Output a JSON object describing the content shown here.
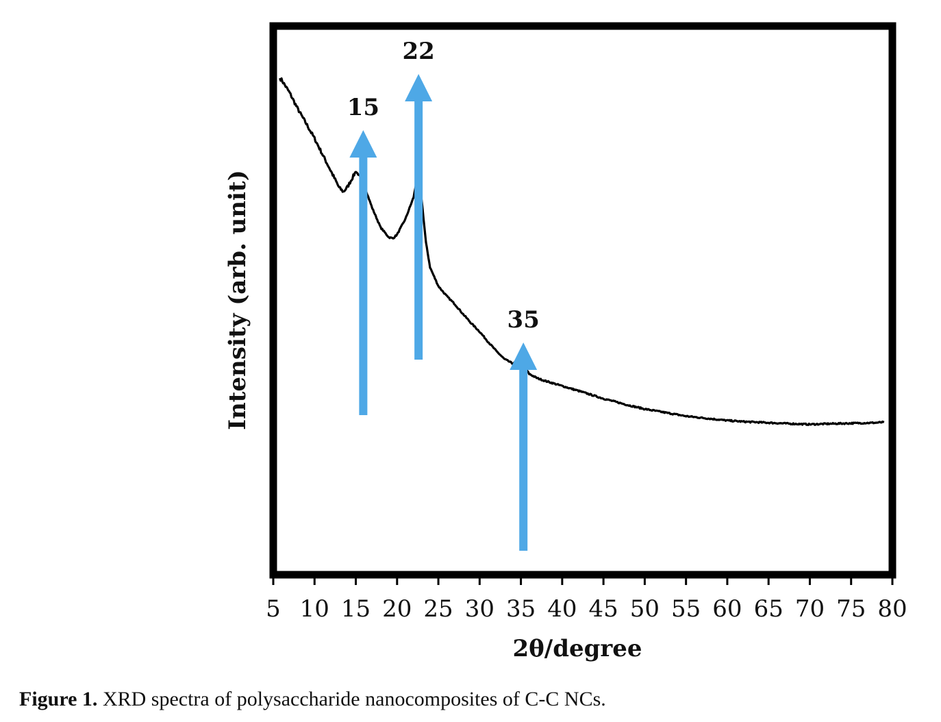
{
  "chart_data": {
    "type": "line",
    "title": "",
    "xlabel": "2θ/degree",
    "ylabel": "Intensity (arb. unit)",
    "xlim": [
      5,
      80
    ],
    "x_ticks": [
      5,
      10,
      15,
      20,
      25,
      30,
      35,
      40,
      45,
      50,
      55,
      60,
      65,
      70,
      75,
      80
    ],
    "y_ticks": [],
    "grid": false,
    "series": [
      {
        "color": "#000000",
        "x": [
          5.8,
          6,
          7,
          8,
          9,
          10,
          11,
          12,
          13,
          13.5,
          14,
          15,
          15.5,
          16,
          17,
          18,
          19,
          19.5,
          20,
          21,
          22,
          22.5,
          23,
          23.5,
          24,
          25,
          26,
          27,
          28,
          29,
          30,
          31,
          32,
          33,
          34,
          35,
          35.5,
          36,
          37,
          38,
          40,
          42,
          45,
          48,
          50,
          55,
          60,
          62,
          65,
          68,
          70,
          72,
          75,
          78,
          79
        ],
        "y": [
          90.5,
          90.2,
          87.8,
          84.8,
          82.2,
          79.5,
          76.5,
          73.5,
          70.5,
          69.8,
          70.7,
          73.5,
          72.6,
          71.0,
          66.8,
          63.3,
          61.5,
          61.3,
          62.0,
          64.8,
          68.8,
          72.8,
          68.0,
          60.5,
          56.0,
          52.6,
          50.8,
          49.3,
          47.5,
          45.8,
          44.3,
          42.5,
          40.8,
          39.3,
          38.5,
          39.0,
          37.8,
          36.6,
          35.8,
          35.3,
          34.4,
          33.5,
          32.1,
          30.9,
          30.2,
          28.9,
          28.1,
          27.9,
          27.7,
          27.5,
          27.4,
          27.5,
          27.6,
          27.7,
          27.8
        ]
      }
    ],
    "annotations": [
      {
        "text": "15",
        "x": 15.9
      },
      {
        "text": "22",
        "x": 22.6
      },
      {
        "text": "35",
        "x": 35.3
      }
    ],
    "arrow_color": "#4ea8e6"
  },
  "caption": {
    "label": "Figure 1.",
    "text": " XRD spectra of polysaccharide nanocomposites of C-C NCs."
  }
}
